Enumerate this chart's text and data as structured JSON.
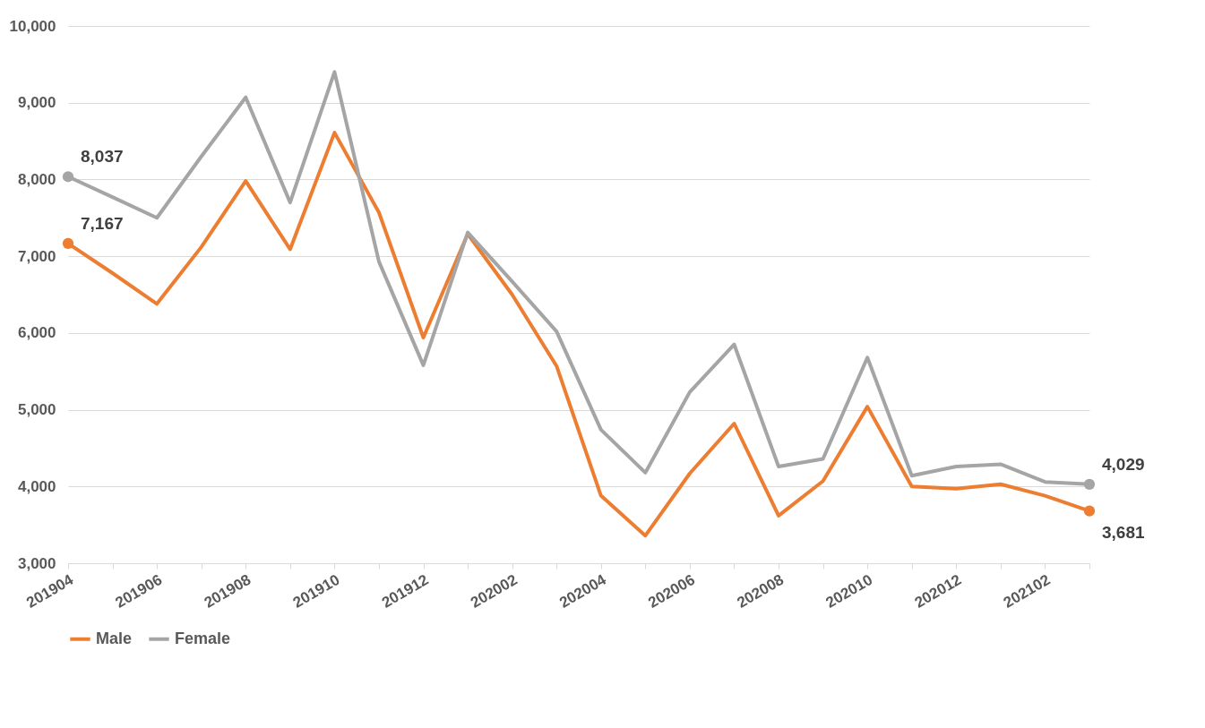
{
  "chart_data": {
    "type": "line",
    "categories": [
      "201904",
      null,
      "201906",
      null,
      "201908",
      null,
      "201910",
      null,
      "201912",
      null,
      "202002",
      null,
      "202004",
      null,
      "202006",
      null,
      "202008",
      null,
      "202010",
      null,
      "202012",
      null,
      "202102",
      null
    ],
    "series": [
      {
        "name": "Male",
        "color": "#ed7d31",
        "values": [
          7167,
          6780,
          6380,
          7120,
          7980,
          7090,
          8610,
          7570,
          5940,
          7290,
          6500,
          5570,
          3880,
          3360,
          4170,
          4820,
          3620,
          4070,
          5040,
          4000,
          3970,
          4030,
          3880,
          3681
        ],
        "value_labels": [
          "7,167",
          null,
          null,
          null,
          null,
          null,
          null,
          null,
          null,
          null,
          null,
          null,
          null,
          null,
          null,
          null,
          null,
          null,
          null,
          null,
          null,
          null,
          null,
          "3,681"
        ]
      },
      {
        "name": "Female",
        "color": "#a5a5a5",
        "values": [
          8037,
          7770,
          7500,
          8300,
          9070,
          7700,
          9400,
          6930,
          5580,
          7310,
          6670,
          6020,
          4740,
          4180,
          5230,
          5850,
          4260,
          4360,
          5680,
          4140,
          4260,
          4290,
          4060,
          4029
        ],
        "value_labels": [
          "8,037",
          null,
          null,
          null,
          null,
          null,
          null,
          null,
          null,
          null,
          null,
          null,
          null,
          null,
          null,
          null,
          null,
          null,
          null,
          null,
          null,
          null,
          null,
          "4,029"
        ]
      }
    ],
    "ylim": [
      3000,
      10000
    ],
    "yticks": [
      {
        "value": 3000,
        "label": "3,000"
      },
      {
        "value": 4000,
        "label": "4,000"
      },
      {
        "value": 5000,
        "label": "5,000"
      },
      {
        "value": 6000,
        "label": "6,000"
      },
      {
        "value": 7000,
        "label": "7,000"
      },
      {
        "value": 8000,
        "label": "8,000"
      },
      {
        "value": 9000,
        "label": "9,000"
      },
      {
        "value": 10000,
        "label": "10,000"
      }
    ],
    "grid": "y",
    "legend": "bottom"
  }
}
